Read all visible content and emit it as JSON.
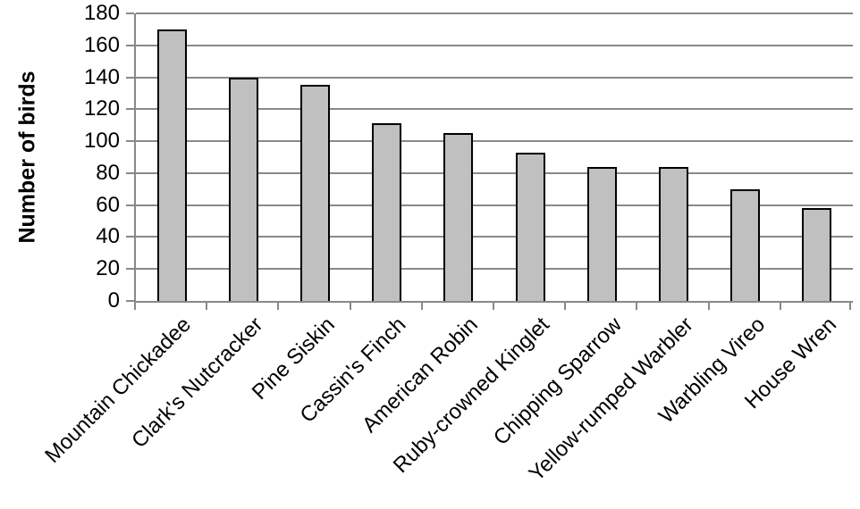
{
  "chart_data": {
    "type": "bar",
    "categories": [
      "Mountain Chickadee",
      "Clark's Nutcracker",
      "Pine Siskin",
      "Cassin's Finch",
      "American Robin",
      "Ruby-crowned Kinglet",
      "Chipping Sparrow",
      "Yellow-rumped Warbler",
      "Warbling Vireo",
      "House Wren"
    ],
    "values": [
      170,
      140,
      135,
      111,
      105,
      93,
      84,
      84,
      70,
      58
    ],
    "title": "",
    "xlabel": "",
    "ylabel": "Number of birds",
    "ylim": [
      0,
      180
    ],
    "ytick_step": 20,
    "yticks": [
      0,
      20,
      40,
      60,
      80,
      100,
      120,
      140,
      160,
      180
    ],
    "grid": true,
    "legend_position": "none",
    "colors": {
      "bar_fill": "#c0c0c0",
      "bar_border": "#000000",
      "gridline": "#898989",
      "axis": "#898989",
      "text": "#000000",
      "background": "#ffffff"
    }
  }
}
